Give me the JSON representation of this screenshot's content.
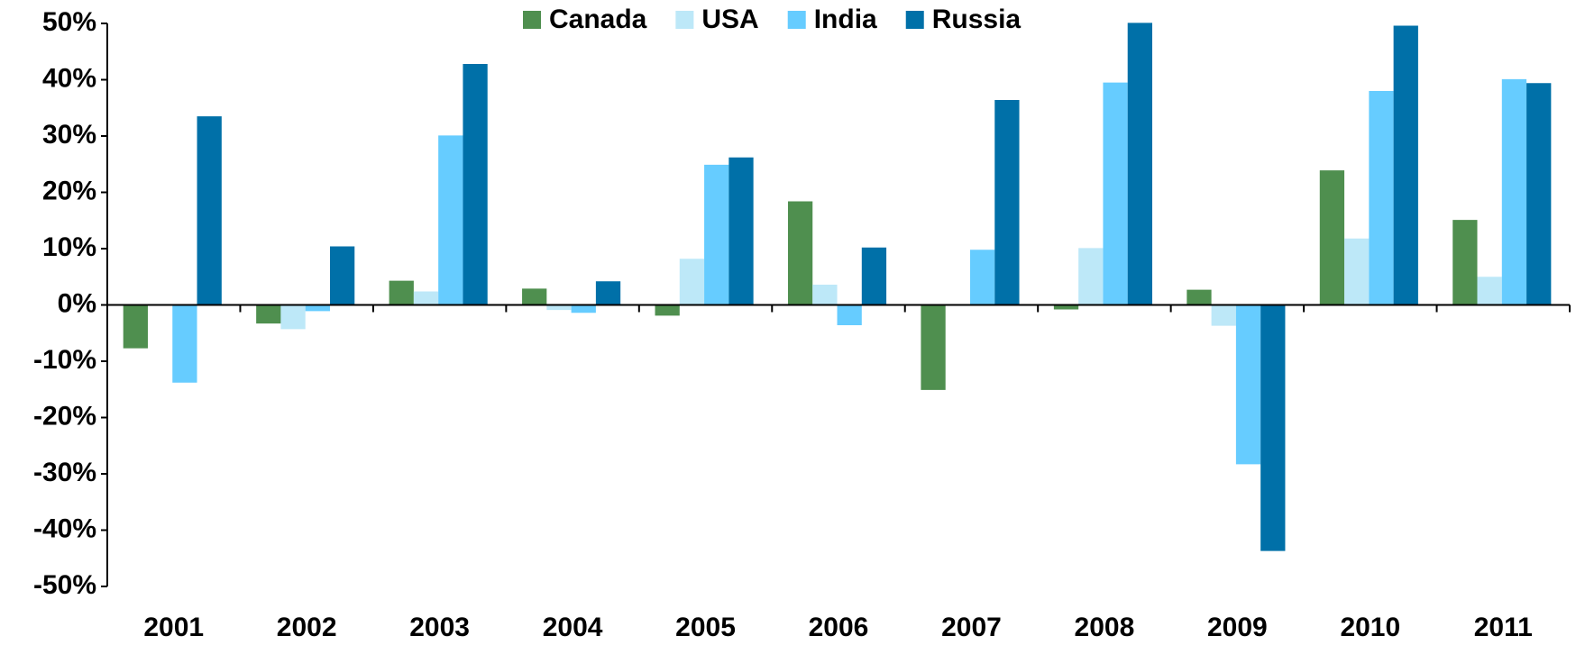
{
  "chart_data": {
    "type": "bar",
    "categories": [
      "2001",
      "2002",
      "2003",
      "2004",
      "2005",
      "2006",
      "2007",
      "2008",
      "2009",
      "2010",
      "2011"
    ],
    "series": [
      {
        "name": "Canada",
        "color": "#4f8f4f",
        "values": [
          -7.7,
          -3.3,
          4.3,
          2.9,
          -1.9,
          18.4,
          -15.1,
          -0.8,
          2.7,
          23.9,
          15.1
        ]
      },
      {
        "name": "USA",
        "color": "#bde8f8",
        "values": [
          0,
          -4.3,
          2.4,
          -0.9,
          8.2,
          3.6,
          0,
          10.1,
          -3.7,
          11.8,
          5.0
        ]
      },
      {
        "name": "India",
        "color": "#66ccff",
        "values": [
          -13.8,
          -1.1,
          30.1,
          -1.4,
          24.9,
          -3.6,
          9.8,
          39.5,
          -28.3,
          38.0,
          40.1
        ]
      },
      {
        "name": "Russia",
        "color": "#0070a8",
        "values": [
          33.5,
          10.4,
          42.8,
          4.2,
          26.2,
          10.2,
          36.4,
          50.1,
          -43.7,
          49.6,
          39.4
        ]
      }
    ],
    "ylim": [
      -50,
      50
    ],
    "yticks": [
      {
        "value": -50,
        "label": "-50%"
      },
      {
        "value": -40,
        "label": "-40%"
      },
      {
        "value": -30,
        "label": "-30%"
      },
      {
        "value": -20,
        "label": "-20%"
      },
      {
        "value": -10,
        "label": "-10%"
      },
      {
        "value": 0,
        "label": "0%"
      },
      {
        "value": 10,
        "label": "10%"
      },
      {
        "value": 20,
        "label": "20%"
      },
      {
        "value": 30,
        "label": "30%"
      },
      {
        "value": 40,
        "label": "40%"
      },
      {
        "value": 50,
        "label": "50%"
      }
    ],
    "legend": "top"
  }
}
